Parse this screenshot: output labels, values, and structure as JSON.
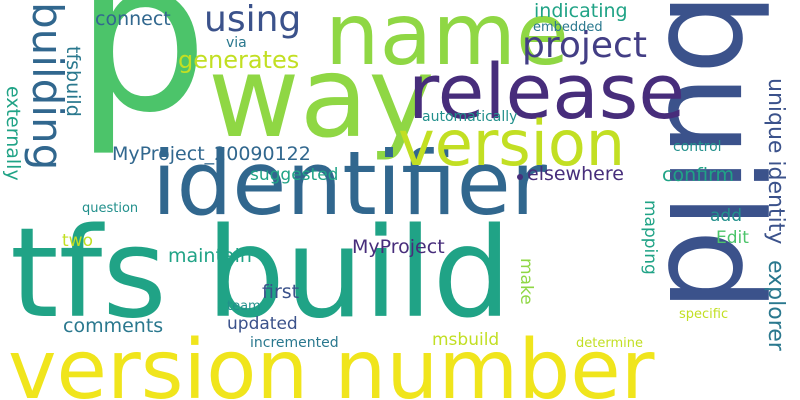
{
  "word_cloud": {
    "words": {
      "p": "p",
      "build_vertical": "build",
      "name": "name",
      "way": "way",
      "release": "release",
      "identifier": "identifier",
      "tfs_build": "tfs build",
      "version_number": "version number",
      "version": "version",
      "using": "using",
      "project": "project",
      "building": "building",
      "generates": "generates",
      "connect": "connect",
      "via": "via",
      "indicating": "indicating",
      "embedded": "embedded",
      "tfsbuild": "tfsbuild",
      "externally": "externally",
      "myproject_20090122": "MyProject_20090122",
      "automatically": "automatically",
      "unique_identity": "unique identity",
      "control": "control",
      "elsewhere": "elsewhere",
      "confirm": "confirm",
      "suggested": "suggested",
      "question": "question",
      "explorer": "explorer",
      "add": "add",
      "edit": "Edit",
      "mapping": "mapping",
      "two": "two",
      "myproject": "MyProject",
      "maintain": "maintain",
      "first": "first",
      "make": "make",
      "team": "team",
      "comments": "comments",
      "updated": "updated",
      "specific": "specific",
      "incremented": "incremented",
      "msbuild": "msbuild",
      "determine": "determine"
    },
    "colors": {
      "green_bright": "#4cc46a",
      "green_light": "#8fd744",
      "yellow_green": "#c2df23",
      "yellow": "#f0e51c",
      "teal": "#20a386",
      "teal_dark": "#22908c",
      "blue_teal": "#2a788e",
      "blue": "#31678e",
      "navy": "#3b528b",
      "purple": "#472d7b",
      "purple_dark": "#440154",
      "indigo": "#433e85"
    }
  }
}
